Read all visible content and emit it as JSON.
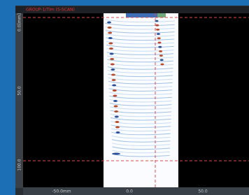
{
  "header": {
    "title": "GROUP-1/TIm (S-SCAN)"
  },
  "vertical_ruler": {
    "labels": [
      "0.0[mm]",
      "50.0",
      "100.0"
    ]
  },
  "horizontal_ruler": {
    "labels": [
      "-50.0mm",
      "0.0",
      "50.0"
    ]
  }
}
